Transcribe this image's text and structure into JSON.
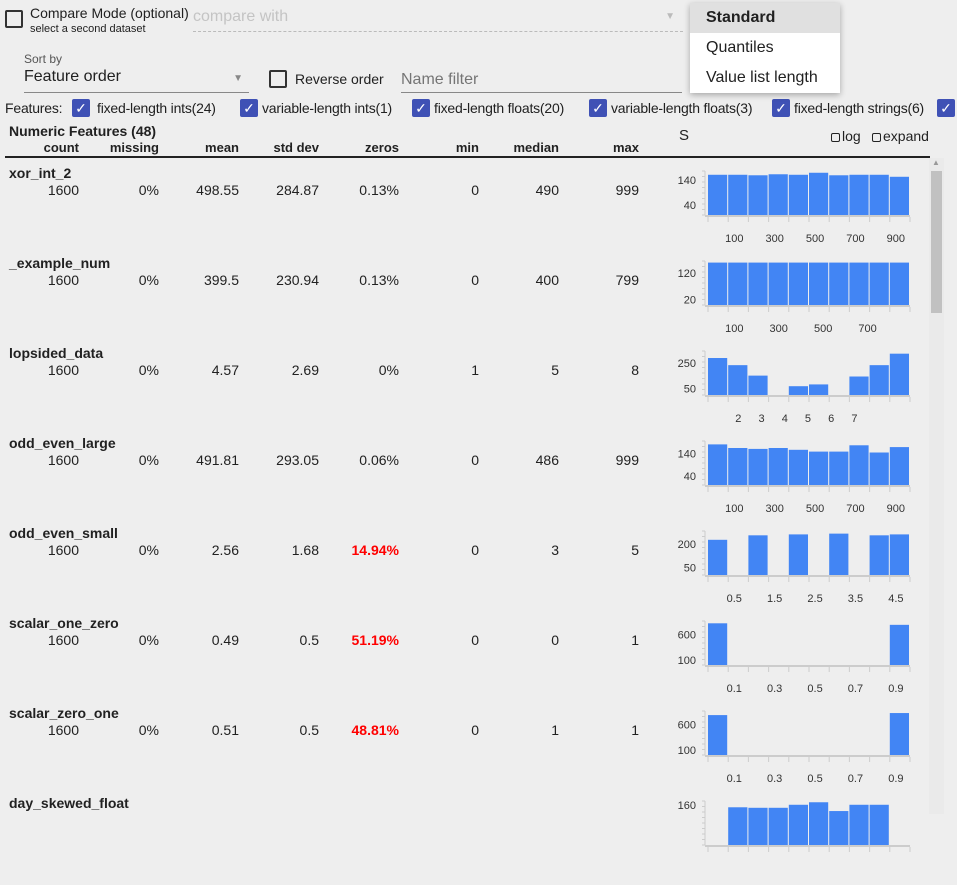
{
  "compare": {
    "label": "Compare Mode (optional)",
    "sublabel": "select a second dataset",
    "placeholder": "compare with"
  },
  "sort": {
    "label": "Sort by",
    "value": "Feature order",
    "reverse_label": "Reverse order",
    "filter_placeholder": "Name filter"
  },
  "features": {
    "label": "Features:",
    "items": [
      {
        "label": "fixed-length ints(24)",
        "checked": true
      },
      {
        "label": "variable-length ints(1)",
        "checked": true
      },
      {
        "label": "fixed-length floats(20)",
        "checked": true
      },
      {
        "label": "variable-length floats(3)",
        "checked": true
      },
      {
        "label": "fixed-length strings(6)",
        "checked": true
      },
      {
        "label": "",
        "checked": true
      }
    ]
  },
  "table": {
    "title": "Numeric Features (48)",
    "columns": [
      "count",
      "missing",
      "mean",
      "std dev",
      "zeros",
      "min",
      "median",
      "max"
    ],
    "chart_header": "S",
    "log_label": "log",
    "expand_label": "expand",
    "rows": [
      {
        "name": "xor_int_2",
        "values": [
          "1600",
          "0%",
          "498.55",
          "284.87",
          "0.13%",
          "0",
          "490",
          "999"
        ],
        "zeros_alert": false
      },
      {
        "name": "_example_num",
        "values": [
          "1600",
          "0%",
          "399.5",
          "230.94",
          "0.13%",
          "0",
          "400",
          "799"
        ],
        "zeros_alert": false
      },
      {
        "name": "lopsided_data",
        "values": [
          "1600",
          "0%",
          "4.57",
          "2.69",
          "0%",
          "1",
          "5",
          "8"
        ],
        "zeros_alert": false
      },
      {
        "name": "odd_even_large",
        "values": [
          "1600",
          "0%",
          "491.81",
          "293.05",
          "0.06%",
          "0",
          "486",
          "999"
        ],
        "zeros_alert": false
      },
      {
        "name": "odd_even_small",
        "values": [
          "1600",
          "0%",
          "2.56",
          "1.68",
          "14.94%",
          "0",
          "3",
          "5"
        ],
        "zeros_alert": true
      },
      {
        "name": "scalar_one_zero",
        "values": [
          "1600",
          "0%",
          "0.49",
          "0.5",
          "51.19%",
          "0",
          "0",
          "1"
        ],
        "zeros_alert": true
      },
      {
        "name": "scalar_zero_one",
        "values": [
          "1600",
          "0%",
          "0.51",
          "0.5",
          "48.81%",
          "0",
          "1",
          "1"
        ],
        "zeros_alert": true
      },
      {
        "name": "day_skewed_float",
        "values": [
          "",
          "",
          "",
          "",
          "",
          "",
          "",
          ""
        ],
        "zeros_alert": false
      }
    ]
  },
  "chart_data": [
    {
      "type": "bar",
      "feature": "xor_int_2",
      "values": [
        160,
        160,
        158,
        162,
        160,
        168,
        158,
        160,
        160,
        152
      ],
      "ylim": [
        0,
        175
      ],
      "yticks": [
        {
          "v": 40,
          "label": "40"
        },
        {
          "v": 140,
          "label": "140"
        }
      ],
      "xticks": [
        "100",
        "300",
        "500",
        "700",
        "900"
      ]
    },
    {
      "type": "bar",
      "feature": "_example_num",
      "values": [
        160,
        160,
        160,
        160,
        160,
        160,
        160,
        160,
        160,
        160
      ],
      "ylim": [
        0,
        166
      ],
      "yticks": [
        {
          "v": 20,
          "label": "20"
        },
        {
          "v": 120,
          "label": "120"
        }
      ],
      "xticks": [
        "100",
        "300",
        "500",
        "700"
      ]
    },
    {
      "type": "bar",
      "feature": "lopsided_data",
      "values": [
        290,
        234,
        152,
        0,
        69,
        83,
        0,
        145,
        234,
        324
      ],
      "ylim": [
        0,
        345
      ],
      "yticks": [
        {
          "v": 50,
          "label": "50"
        },
        {
          "v": 250,
          "label": "250"
        }
      ],
      "xticks": [
        "2",
        "3",
        "4",
        "5",
        "6",
        "7"
      ]
    },
    {
      "type": "bar",
      "feature": "odd_even_large",
      "values": [
        180,
        164,
        160,
        164,
        156,
        148,
        148,
        176,
        144,
        168
      ],
      "ylim": [
        0,
        195
      ],
      "yticks": [
        {
          "v": 40,
          "label": "40"
        },
        {
          "v": 140,
          "label": "140"
        }
      ],
      "xticks": [
        "100",
        "300",
        "500",
        "700",
        "900"
      ]
    },
    {
      "type": "bar",
      "feature": "odd_even_small",
      "values": [
        228,
        0,
        257,
        0,
        263,
        0,
        268,
        0,
        257,
        263
      ],
      "ylim": [
        0,
        285
      ],
      "yticks": [
        {
          "v": 50,
          "label": "50"
        },
        {
          "v": 200,
          "label": "200"
        }
      ],
      "xticks": [
        "0.5",
        "1.5",
        "2.5",
        "3.5",
        "4.5"
      ]
    },
    {
      "type": "bar",
      "feature": "scalar_one_zero",
      "values": [
        815,
        0,
        0,
        0,
        0,
        0,
        0,
        0,
        0,
        785
      ],
      "ylim": [
        0,
        860
      ],
      "yticks": [
        {
          "v": 100,
          "label": "100"
        },
        {
          "v": 600,
          "label": "600"
        }
      ],
      "xticks": [
        "0.1",
        "0.3",
        "0.5",
        "0.7",
        "0.9"
      ]
    },
    {
      "type": "bar",
      "feature": "scalar_zero_one",
      "values": [
        780,
        0,
        0,
        0,
        0,
        0,
        0,
        0,
        0,
        820
      ],
      "ylim": [
        0,
        860
      ],
      "yticks": [
        {
          "v": 100,
          "label": "100"
        },
        {
          "v": 600,
          "label": "600"
        }
      ],
      "xticks": [
        "0.1",
        "0.3",
        "0.5",
        "0.7",
        "0.9"
      ]
    },
    {
      "type": "bar",
      "feature": "day_skewed_float",
      "values": [
        0,
        150,
        148,
        148,
        160,
        170,
        135,
        160,
        160,
        0
      ],
      "ylim": [
        0,
        175
      ],
      "yticks": [
        {
          "v": 160,
          "label": "160"
        }
      ],
      "xticks": []
    }
  ],
  "chart_type_menu": {
    "items": [
      "Standard",
      "Quantiles",
      "Value list length"
    ],
    "selected": "Standard"
  },
  "colors": {
    "bar": "#4285f4",
    "checkbox": "#3f51b5",
    "alert": "#ff0000"
  }
}
